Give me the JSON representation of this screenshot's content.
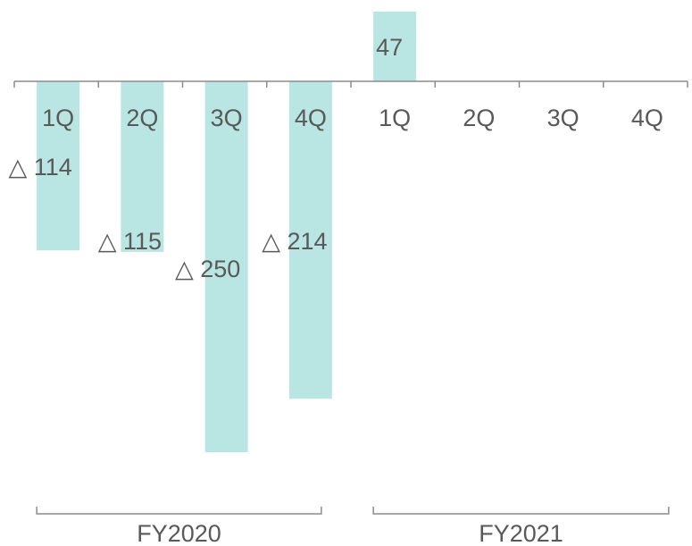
{
  "chart_data": {
    "type": "bar",
    "title": "",
    "xlabel": "",
    "ylabel": "",
    "categories": [
      "1Q",
      "2Q",
      "3Q",
      "4Q",
      "1Q",
      "2Q",
      "3Q",
      "4Q"
    ],
    "values": [
      -114,
      -115,
      -250,
      -214,
      47,
      null,
      null,
      null
    ],
    "value_labels": [
      "△ 114",
      "△ 115",
      "△ 250",
      "△ 214",
      "47",
      "",
      "",
      ""
    ],
    "groups": [
      {
        "label": "FY2020",
        "categories": [
          0,
          1,
          2,
          3
        ]
      },
      {
        "label": "FY2021",
        "categories": [
          4,
          5,
          6,
          7
        ]
      }
    ],
    "bar_color": "#b9e6e2",
    "axis_color": "#8c8c8c",
    "text_color": "#595959",
    "grid": false,
    "legend": "none"
  }
}
